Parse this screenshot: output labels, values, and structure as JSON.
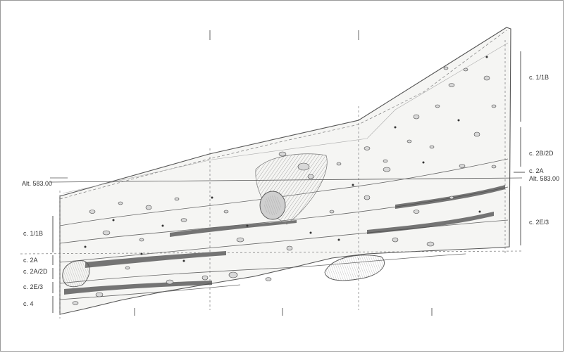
{
  "elevation": {
    "left": "Alt. 583.00",
    "right": "Alt. 583.00"
  },
  "left_layers": [
    "c. 1/1B",
    "c. 2A",
    "c. 2A/2D",
    "c. 2E/3",
    "c. 4"
  ],
  "right_layers": [
    "c. 1/1B",
    "c. 2B/2D",
    "c. 2A",
    "c. 2E/3"
  ],
  "colors": {
    "line": "#555555",
    "fill": "#f4f4f2",
    "dark": "#3a3a3a",
    "hatch": "#777777"
  }
}
